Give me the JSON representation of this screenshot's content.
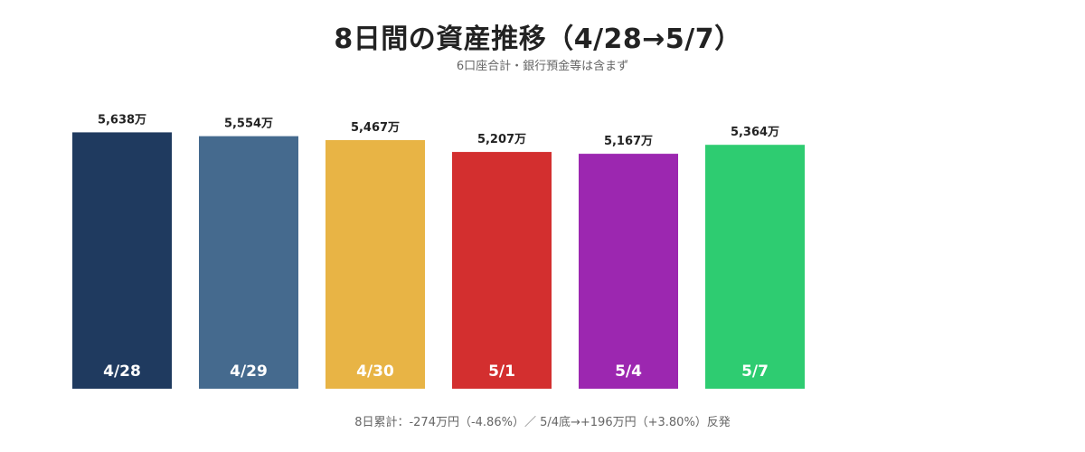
{
  "header": {
    "title": "8日間の資産推移（4/28→5/7）",
    "subtitle": "6口座合計・銀行預金等は含まず"
  },
  "footer": {
    "note": "8日累計：-274万円（-4.86%）／ 5/4底→+196万円（+3.80%）反発"
  },
  "chart_data": {
    "type": "bar",
    "categories": [
      "4/28",
      "4/29",
      "4/30",
      "5/1",
      "5/4",
      "5/7"
    ],
    "values": [
      5638,
      5554,
      5467,
      5207,
      5167,
      5364
    ],
    "value_labels": [
      "5,638万",
      "5,554万",
      "5,467万",
      "5,207万",
      "5,167万",
      "5,364万"
    ],
    "colors": [
      "#1f3a5f",
      "#456a8e",
      "#e8b445",
      "#d32f2f",
      "#9c27b0",
      "#2ecc71"
    ],
    "title": "8日間の資産推移（4/28→5/7）",
    "xlabel": "",
    "ylabel": "",
    "grid": false
  }
}
